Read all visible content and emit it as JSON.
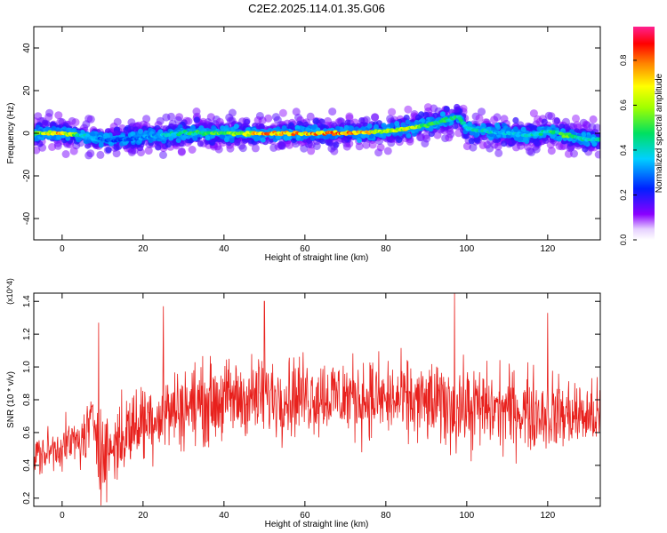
{
  "figure": {
    "title": "C2E2.2025.114.01.35.G06"
  },
  "chart_data": [
    {
      "type": "heatmap",
      "title": "C2E2.2025.114.01.35.G06",
      "xlabel": "Height of straight line (km)",
      "ylabel": "Frequency (Hz)",
      "xlim": [
        -7,
        133
      ],
      "ylim": [
        -50,
        50
      ],
      "x_ticks": [
        0,
        20,
        40,
        60,
        80,
        100,
        120
      ],
      "y_ticks": [
        -40,
        -20,
        0,
        20,
        40
      ],
      "colorbar": {
        "label": "Normalized spectral amplitude",
        "range": [
          0,
          0.95
        ],
        "ticks": [
          0.0,
          0.2,
          0.4,
          0.6,
          0.8
        ],
        "colormap": "rainbow (white-purple-blue-cyan-green-yellow-red-magenta)"
      },
      "ridge": {
        "x": [
          -7,
          0,
          5,
          10,
          15,
          20,
          30,
          40,
          50,
          60,
          70,
          80,
          85,
          90,
          95,
          98,
          100,
          105,
          110,
          115,
          120,
          125,
          130,
          133
        ],
        "frequency": [
          0,
          0,
          -1,
          -3,
          -3,
          -2,
          0,
          0,
          0,
          0,
          0,
          1,
          2,
          4,
          6,
          8,
          2,
          1,
          0,
          -1,
          1,
          -1,
          -3,
          -3
        ],
        "peak_amplitude": [
          0.6,
          0.85,
          0.45,
          0.3,
          0.32,
          0.35,
          0.5,
          0.6,
          0.85,
          0.85,
          0.88,
          0.7,
          0.75,
          0.6,
          0.55,
          0.5,
          0.45,
          0.45,
          0.4,
          0.42,
          0.5,
          0.6,
          0.5,
          0.45
        ]
      }
    },
    {
      "type": "line",
      "xlabel": "Height of straight line (km)",
      "ylabel": "SNR (10 * v/v)",
      "y_multiplier": "(x10^4)",
      "xlim": [
        -7,
        133
      ],
      "ylim": [
        0.15,
        1.45
      ],
      "x_ticks": [
        0,
        20,
        40,
        60,
        80,
        100,
        120
      ],
      "y_ticks": [
        0.2,
        0.4,
        0.6,
        0.8,
        1.0,
        1.2,
        1.4
      ],
      "line_color": "#e8201c",
      "envelope": {
        "x": [
          -7,
          0,
          5,
          8,
          10,
          15,
          20,
          30,
          40,
          50,
          60,
          70,
          80,
          90,
          100,
          110,
          120,
          130,
          133
        ],
        "mean": [
          0.45,
          0.52,
          0.55,
          0.68,
          0.45,
          0.58,
          0.68,
          0.76,
          0.8,
          0.82,
          0.83,
          0.82,
          0.8,
          0.78,
          0.75,
          0.74,
          0.72,
          0.7,
          0.7
        ],
        "spread": [
          0.12,
          0.12,
          0.15,
          0.2,
          0.25,
          0.22,
          0.22,
          0.22,
          0.22,
          0.22,
          0.22,
          0.22,
          0.22,
          0.22,
          0.24,
          0.22,
          0.22,
          0.18,
          0.18
        ]
      },
      "notable_peaks": [
        {
          "x": 9,
          "y": 1.27
        },
        {
          "x": 25,
          "y": 1.37
        },
        {
          "x": 50,
          "y": 1.4
        },
        {
          "x": 97,
          "y": 1.45
        },
        {
          "x": 120,
          "y": 1.33
        }
      ]
    }
  ]
}
